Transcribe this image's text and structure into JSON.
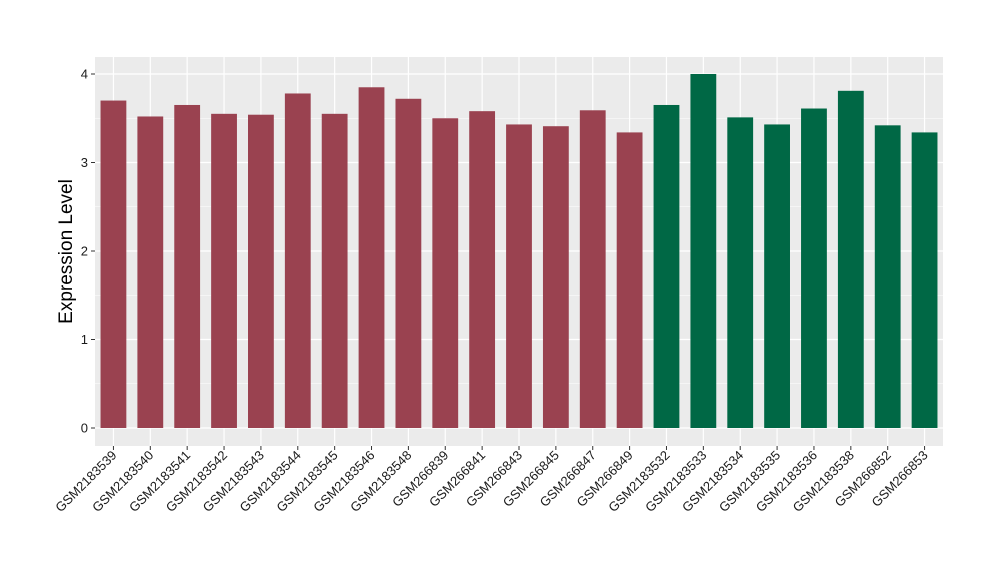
{
  "chart_data": {
    "type": "bar",
    "title": "",
    "xlabel": "",
    "ylabel": "Expression Level",
    "ylim": [
      0,
      4.2
    ],
    "yticks": [
      0,
      1,
      2,
      3,
      4
    ],
    "grid": true,
    "legend": "none",
    "colors": {
      "group1": "#9a4250",
      "group2": "#006845",
      "panel": "#ebebeb",
      "grid": "#ffffff"
    },
    "categories": [
      "GSM2183539",
      "GSM2183540",
      "GSM2183541",
      "GSM2183542",
      "GSM2183543",
      "GSM2183544",
      "GSM2183545",
      "GSM2183546",
      "GSM2183548",
      "GSM266839",
      "GSM266841",
      "GSM266843",
      "GSM266845",
      "GSM266847",
      "GSM266849",
      "GSM2183532",
      "GSM2183533",
      "GSM2183534",
      "GSM2183535",
      "GSM2183536",
      "GSM2183538",
      "GSM266852",
      "GSM266853"
    ],
    "values": [
      3.7,
      3.52,
      3.65,
      3.55,
      3.54,
      3.78,
      3.55,
      3.85,
      3.72,
      3.5,
      3.58,
      3.43,
      3.41,
      3.59,
      3.34,
      3.65,
      4.0,
      3.51,
      3.43,
      3.61,
      3.81,
      3.42,
      3.34
    ],
    "groups": [
      "group1",
      "group1",
      "group1",
      "group1",
      "group1",
      "group1",
      "group1",
      "group1",
      "group1",
      "group1",
      "group1",
      "group1",
      "group1",
      "group1",
      "group1",
      "group2",
      "group2",
      "group2",
      "group2",
      "group2",
      "group2",
      "group2",
      "group2"
    ]
  }
}
